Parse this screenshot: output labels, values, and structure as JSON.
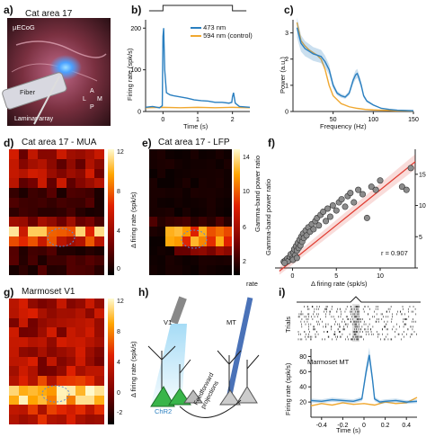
{
  "panels": {
    "a": {
      "label": "a)",
      "title": "Cat area 17",
      "ecog": "µECoG",
      "fiber": "Fiber",
      "laminar": "Laminar array",
      "compass": {
        "a": "A",
        "p": "P",
        "l": "L",
        "m": "M"
      }
    },
    "b": {
      "label": "b)",
      "ylabel": "Firing rate (spk/s)",
      "xlabel": "Time (s)",
      "legend": [
        "473 nm",
        "594 nm (control)"
      ]
    },
    "c": {
      "label": "c)",
      "ylabel": "Power (a.u.)",
      "xlabel": "Frequency (Hz)"
    },
    "d": {
      "label": "d)",
      "title": "Cat area 17 - MUA",
      "cbar_label": "Δ firing rate (spk/s)"
    },
    "e": {
      "label": "e)",
      "title": "Cat area 17 - LFP",
      "cbar_label": "Gamma-band power ratio",
      "cbar_unit": "rate"
    },
    "f": {
      "label": "f)",
      "ylabel": "Gamma-band power ratio",
      "xlabel": "Δ firing rate (spk/s)",
      "annotation": "r = 0.907"
    },
    "g": {
      "label": "g)",
      "title": "Marmoset V1",
      "cbar_label": "Δ firing rate (spk/s)"
    },
    "h": {
      "label": "h)",
      "v1": "V1",
      "mt": "MT",
      "chr2": "ChR2",
      "ff1": "Feedforward",
      "ff2": "projections"
    },
    "i": {
      "label": "i)",
      "trials": "Trials",
      "title": "Marmoset MT",
      "ylabel": "Firing rate (spk/s)",
      "xlabel": "Time (s)"
    }
  },
  "colors": {
    "blue": "#2a7fc0",
    "orange": "#f0a830",
    "green": "#39b54a",
    "red": "#e03c31"
  },
  "chart_data": [
    {
      "id": "b",
      "type": "line",
      "xlim": [
        -0.5,
        2.5
      ],
      "ylim": [
        0,
        220
      ],
      "xticks": [
        0,
        1,
        2
      ],
      "yticks": [
        0,
        100,
        200
      ],
      "series": [
        {
          "name": "473 nm",
          "x": [
            -0.5,
            -0.3,
            -0.1,
            -0.02,
            0,
            0.02,
            0.05,
            0.1,
            0.2,
            0.3,
            0.5,
            0.7,
            0.9,
            1.1,
            1.3,
            1.5,
            1.7,
            1.9,
            1.98,
            2.0,
            2.03,
            2.08,
            2.2,
            2.5
          ],
          "values": [
            10,
            12,
            9,
            14,
            180,
            200,
            100,
            45,
            40,
            38,
            35,
            32,
            28,
            26,
            25,
            22,
            22,
            20,
            22,
            35,
            45,
            20,
            12,
            10
          ]
        },
        {
          "name": "594 nm (control)",
          "x": [
            -0.5,
            0,
            0.5,
            1.0,
            1.5,
            2.0,
            2.5
          ],
          "values": [
            9,
            10,
            9,
            10,
            9,
            10,
            9
          ]
        }
      ]
    },
    {
      "id": "c",
      "type": "line",
      "xlim": [
        0,
        150
      ],
      "ylim": [
        0,
        3.5
      ],
      "xticks": [
        50,
        100,
        150
      ],
      "yticks": [
        0,
        1,
        2,
        3
      ],
      "series": [
        {
          "name": "473 nm",
          "x": [
            5,
            10,
            15,
            20,
            25,
            30,
            35,
            40,
            45,
            50,
            55,
            60,
            65,
            70,
            75,
            78,
            80,
            82,
            85,
            88,
            92,
            100,
            110,
            120,
            130,
            140,
            150
          ],
          "values": [
            3.2,
            2.6,
            2.4,
            2.3,
            2.2,
            2.15,
            2.1,
            1.9,
            1.6,
            1.0,
            0.7,
            0.6,
            0.55,
            0.7,
            1.2,
            1.4,
            1.45,
            1.3,
            1.0,
            0.6,
            0.4,
            0.25,
            0.12,
            0.08,
            0.05,
            0.04,
            0.03
          ]
        },
        {
          "name": "594 nm (control)",
          "x": [
            5,
            10,
            15,
            20,
            25,
            30,
            35,
            40,
            45,
            50,
            60,
            70,
            80,
            90,
            100,
            110,
            120,
            130,
            140,
            150
          ],
          "values": [
            3.4,
            2.7,
            2.5,
            2.35,
            2.25,
            2.15,
            2.0,
            1.6,
            1.0,
            0.6,
            0.3,
            0.18,
            0.12,
            0.08,
            0.06,
            0.05,
            0.04,
            0.03,
            0.03,
            0.02
          ]
        }
      ]
    },
    {
      "id": "d",
      "type": "heatmap",
      "colorbar_ticks": [
        0,
        4,
        8,
        12
      ]
    },
    {
      "id": "e",
      "type": "heatmap",
      "colorbar_ticks": [
        2,
        6,
        10,
        14
      ]
    },
    {
      "id": "g",
      "type": "heatmap",
      "colorbar_ticks": [
        -2,
        0,
        4,
        8,
        12
      ]
    },
    {
      "id": "f",
      "type": "scatter",
      "xlim": [
        -2,
        14
      ],
      "ylim": [
        0,
        19
      ],
      "xticks": [
        0,
        5,
        10
      ],
      "yticks": [
        0,
        5,
        10,
        15
      ],
      "points": [
        [
          -1,
          1
        ],
        [
          -0.8,
          1.2
        ],
        [
          -0.6,
          1.5
        ],
        [
          -0.5,
          1.1
        ],
        [
          -0.3,
          1.8
        ],
        [
          -0.2,
          2.2
        ],
        [
          0,
          1.5
        ],
        [
          0.1,
          2.5
        ],
        [
          0.2,
          3
        ],
        [
          0.3,
          2
        ],
        [
          0.4,
          3.5
        ],
        [
          0.5,
          2.8
        ],
        [
          0.6,
          4
        ],
        [
          0.7,
          3.2
        ],
        [
          0.8,
          4.5
        ],
        [
          0.9,
          3.6
        ],
        [
          1,
          5
        ],
        [
          1.1,
          4.2
        ],
        [
          1.2,
          5.5
        ],
        [
          1.3,
          4.8
        ],
        [
          1.5,
          6
        ],
        [
          1.6,
          5.2
        ],
        [
          1.8,
          6.5
        ],
        [
          2,
          5.8
        ],
        [
          2.2,
          7
        ],
        [
          2.4,
          6.2
        ],
        [
          2.6,
          7.5
        ],
        [
          2.8,
          8
        ],
        [
          3,
          6.8
        ],
        [
          3.2,
          8.5
        ],
        [
          3.5,
          9
        ],
        [
          3.8,
          7.5
        ],
        [
          4,
          9.5
        ],
        [
          4.3,
          8.2
        ],
        [
          4.6,
          10
        ],
        [
          5,
          9.2
        ],
        [
          5.3,
          10.5
        ],
        [
          5.6,
          11
        ],
        [
          6,
          9.8
        ],
        [
          6.3,
          11.5
        ],
        [
          6.6,
          12
        ],
        [
          7,
          10.5
        ],
        [
          7.5,
          12.5
        ],
        [
          8,
          11.8
        ],
        [
          8.5,
          8
        ],
        [
          9,
          13
        ],
        [
          9.5,
          12.5
        ],
        [
          10,
          14
        ],
        [
          12.5,
          13
        ],
        [
          13,
          12.5
        ],
        [
          13.5,
          16
        ],
        [
          -0.9,
          0.8
        ],
        [
          0.05,
          1.3
        ],
        [
          0.5,
          1.6
        ]
      ],
      "fit_line": {
        "x": [
          -1.5,
          14
        ],
        "y": [
          -0.5,
          17
        ]
      }
    },
    {
      "id": "i",
      "type": "line",
      "xlim": [
        -0.5,
        0.5
      ],
      "ylim": [
        0,
        90
      ],
      "xticks": [
        -0.4,
        -0.2,
        0,
        0.2,
        0.4
      ],
      "yticks": [
        20,
        40,
        60,
        80
      ],
      "series": [
        {
          "name": "blue",
          "x": [
            -0.5,
            -0.4,
            -0.3,
            -0.2,
            -0.1,
            -0.02,
            0.02,
            0.05,
            0.08,
            0.1,
            0.15,
            0.2,
            0.3,
            0.4,
            0.5
          ],
          "values": [
            22,
            21,
            23,
            22,
            21,
            24,
            60,
            82,
            50,
            24,
            20,
            21,
            22,
            20,
            21
          ]
        },
        {
          "name": "orange",
          "x": [
            -0.5,
            -0.4,
            -0.3,
            -0.2,
            -0.1,
            0,
            0.1,
            0.2,
            0.3,
            0.4,
            0.5
          ],
          "values": [
            15,
            18,
            16,
            19,
            17,
            18,
            16,
            20,
            18,
            19,
            26
          ]
        }
      ]
    }
  ]
}
